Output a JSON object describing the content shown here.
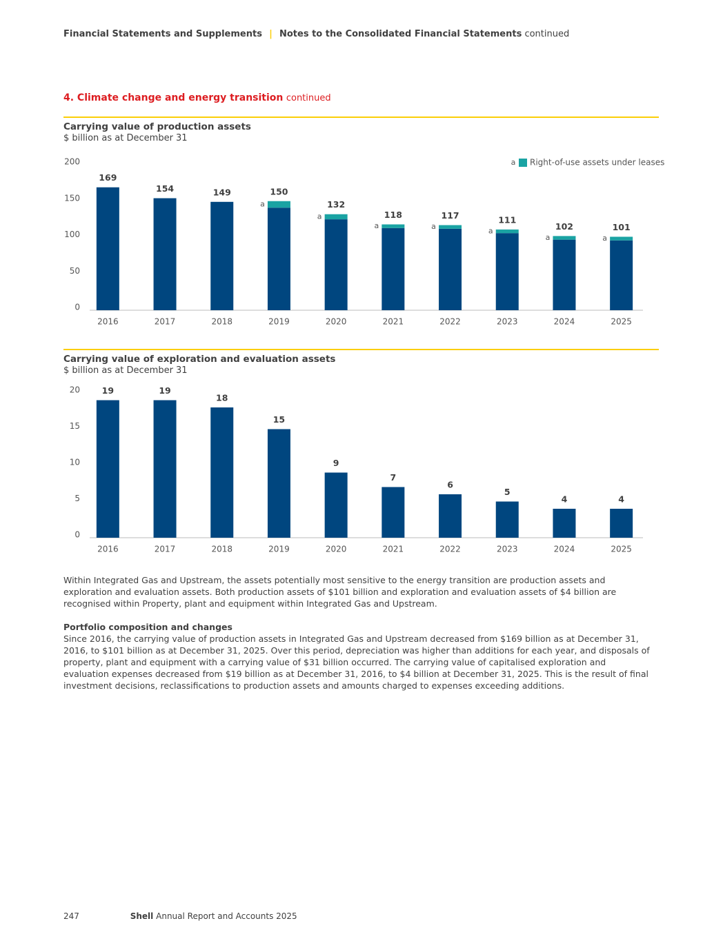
{
  "header": {
    "section": "Financial Statements and Supplements",
    "separator": "|",
    "subsection": "Notes to the Consolidated Financial Statements",
    "suffix": "continued"
  },
  "heading": {
    "title": "4. Climate change and energy transition",
    "suffix": "continued"
  },
  "chart_data": [
    {
      "type": "bar",
      "stacked": true,
      "title": "Carrying value of production assets",
      "subtitle": "$ billion as at December 31",
      "categories": [
        "2016",
        "2017",
        "2018",
        "2019",
        "2020",
        "2021",
        "2022",
        "2023",
        "2024",
        "2025"
      ],
      "series": [
        {
          "color": "#00467f",
          "values": [
            169,
            154,
            149,
            141,
            125,
            113,
            112,
            106,
            97,
            96
          ]
        },
        {
          "name": "Right-of-use assets under leases",
          "color": "#1aa3a3",
          "values": [
            null,
            null,
            null,
            9,
            7,
            5,
            5,
            5,
            5,
            5
          ]
        }
      ],
      "totals": [
        169,
        154,
        149,
        150,
        132,
        118,
        117,
        111,
        102,
        101
      ],
      "note_marker": "a",
      "ylim": [
        0,
        200
      ],
      "yticks": [
        0,
        50,
        100,
        150,
        200
      ],
      "grid": false,
      "legend": "top-right"
    },
    {
      "type": "bar",
      "title": "Carrying value of exploration and evaluation assets",
      "subtitle": "$ billion as at December 31",
      "categories": [
        "2016",
        "2017",
        "2018",
        "2019",
        "2020",
        "2021",
        "2022",
        "2023",
        "2024",
        "2025"
      ],
      "values": [
        19,
        19,
        18,
        15,
        9,
        7,
        6,
        5,
        4,
        4
      ],
      "color": "#00467f",
      "ylim": [
        0,
        20
      ],
      "yticks": [
        0,
        5,
        10,
        15,
        20
      ],
      "grid": false
    }
  ],
  "body": {
    "paragraph_1": "Within Integrated Gas and Upstream, the assets potentially most sensitive to the energy transition are production assets and exploration and evaluation assets. Both production assets of $101 billion and exploration and evaluation assets of $4 billion are recognised within Property, plant and equipment within Integrated Gas and Upstream.",
    "subheading": "Portfolio composition and changes",
    "paragraph_2": "Since 2016, the carrying value of production assets in Integrated Gas and Upstream decreased from $169 billion as at December 31, 2016, to $101 billion as at December 31, 2025. Over this period, depreciation was higher than additions for each year, and disposals of property, plant and equipment with a carrying value of $31 billion occurred. The carrying value of capitalised exploration and evaluation expenses decreased from $19 billion as at December 31, 2016, to $4 billion at December 31, 2025. This is the result of final investment decisions, reclassifications to production assets and amounts charged to expenses exceeding additions."
  },
  "footer": {
    "page": "247",
    "brand": "Shell",
    "report": "Annual Report and Accounts 2025"
  }
}
